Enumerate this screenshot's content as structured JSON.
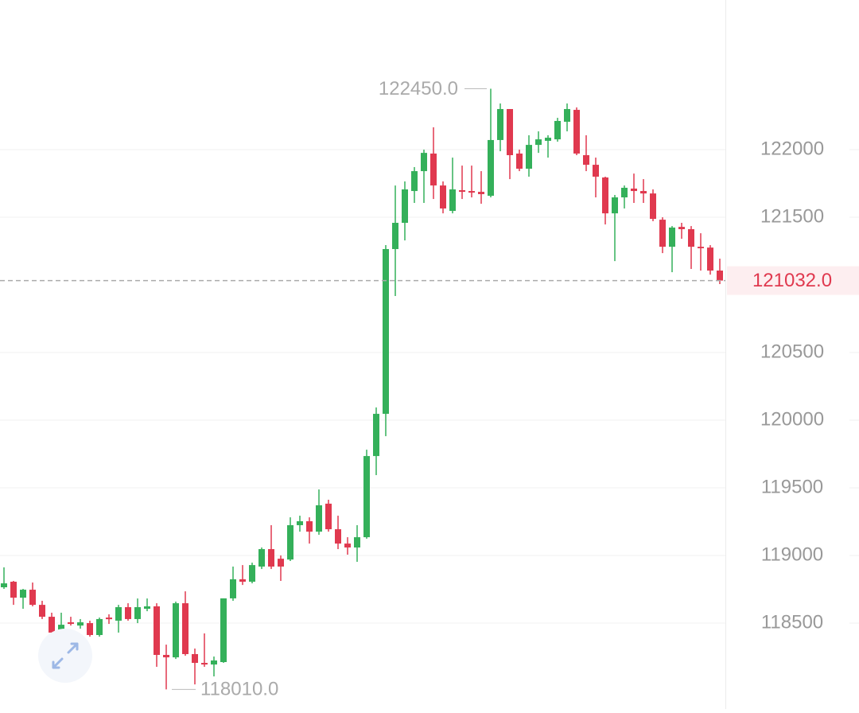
{
  "chart_data": {
    "type": "candlestick",
    "up_color": "#34b05a",
    "down_color": "#e0394f",
    "ylim": [
      117865,
      123106
    ],
    "yticks": [
      122000,
      121500,
      120500,
      120000,
      119500,
      119000,
      118500
    ],
    "grid": true,
    "open": [
      118765,
      118806,
      118688,
      118747,
      118635,
      118547,
      118430,
      118506,
      118482,
      118500,
      118412,
      118541,
      118518,
      118618,
      118530,
      118606,
      118624,
      118265,
      118247,
      118647,
      118271,
      118206,
      118194,
      118212,
      118683,
      118824,
      118806,
      118918,
      119047,
      118976,
      118970,
      119224,
      119253,
      119176,
      119383,
      119194,
      119088,
      119059,
      119135,
      119735,
      120047,
      121265,
      121459,
      121694,
      121841,
      121971,
      121735,
      121547,
      121700,
      121694,
      121688,
      121659,
      122071,
      122300,
      121971,
      121859,
      122035,
      122065,
      122076,
      122206,
      122294,
      121959,
      121888,
      121794,
      121529,
      121647,
      121712,
      121694,
      121676,
      121482,
      121282,
      121429,
      121412,
      121282,
      121276,
      121106
    ],
    "high": [
      118912,
      118812,
      118753,
      118800,
      118665,
      118577,
      118577,
      118547,
      118530,
      118518,
      118541,
      118565,
      118635,
      118647,
      118682,
      118682,
      118647,
      118341,
      118659,
      118735,
      118312,
      118424,
      118253,
      118683,
      118918,
      118929,
      118947,
      119059,
      119224,
      119000,
      119282,
      119294,
      119282,
      119488,
      119412,
      119294,
      119135,
      119224,
      119782,
      120094,
      121294,
      121735,
      121765,
      121871,
      122000,
      122165,
      121765,
      121941,
      121882,
      121882,
      121841,
      122450,
      122341,
      122300,
      122000,
      122106,
      122135,
      122106,
      122235,
      122341,
      122312,
      122106,
      121941,
      121800,
      121665,
      121735,
      121823,
      121782,
      121706,
      121500,
      121435,
      121459,
      121435,
      121382,
      121294,
      121194
    ],
    "low": [
      118753,
      118635,
      118606,
      118624,
      118530,
      118418,
      118418,
      118482,
      118459,
      118400,
      118400,
      118494,
      118430,
      118518,
      118500,
      118588,
      118177,
      118010,
      118235,
      118259,
      118047,
      118177,
      118106,
      118206,
      118665,
      118782,
      118794,
      118900,
      118900,
      118812,
      118959,
      119176,
      119088,
      119153,
      119176,
      119047,
      119006,
      118953,
      119124,
      119594,
      119882,
      120918,
      121329,
      121606,
      121606,
      121635,
      121529,
      121529,
      121635,
      121647,
      121600,
      121647,
      121988,
      121782,
      121841,
      121800,
      121976,
      121941,
      122059,
      122135,
      121959,
      121841,
      121647,
      121447,
      121176,
      121565,
      121606,
      121606,
      121471,
      121235,
      121094,
      121341,
      121118,
      121106,
      121076,
      121006
    ],
    "close": [
      118794,
      118688,
      118747,
      118635,
      118547,
      118430,
      118488,
      118494,
      118506,
      118412,
      118530,
      118529,
      118618,
      118530,
      118618,
      118624,
      118265,
      118247,
      118647,
      118271,
      118206,
      118194,
      118224,
      118683,
      118824,
      118806,
      118929,
      119047,
      118918,
      118918,
      119224,
      119253,
      119176,
      119371,
      119194,
      119088,
      119059,
      119135,
      119735,
      120047,
      121265,
      121459,
      121706,
      121841,
      121976,
      121735,
      121565,
      121706,
      121688,
      121682,
      121671,
      122071,
      122300,
      121959,
      121859,
      122035,
      122076,
      122088,
      122212,
      122300,
      121971,
      121888,
      121800,
      121529,
      121647,
      121718,
      121694,
      121676,
      121488,
      121282,
      121424,
      121412,
      121282,
      121271,
      121106,
      121032
    ],
    "high_label": {
      "value": 122450,
      "label": "122450.0"
    },
    "low_label": {
      "value": 118010,
      "label": "118010.0"
    },
    "last_price": {
      "value": 121032,
      "label": "121032.0"
    }
  }
}
